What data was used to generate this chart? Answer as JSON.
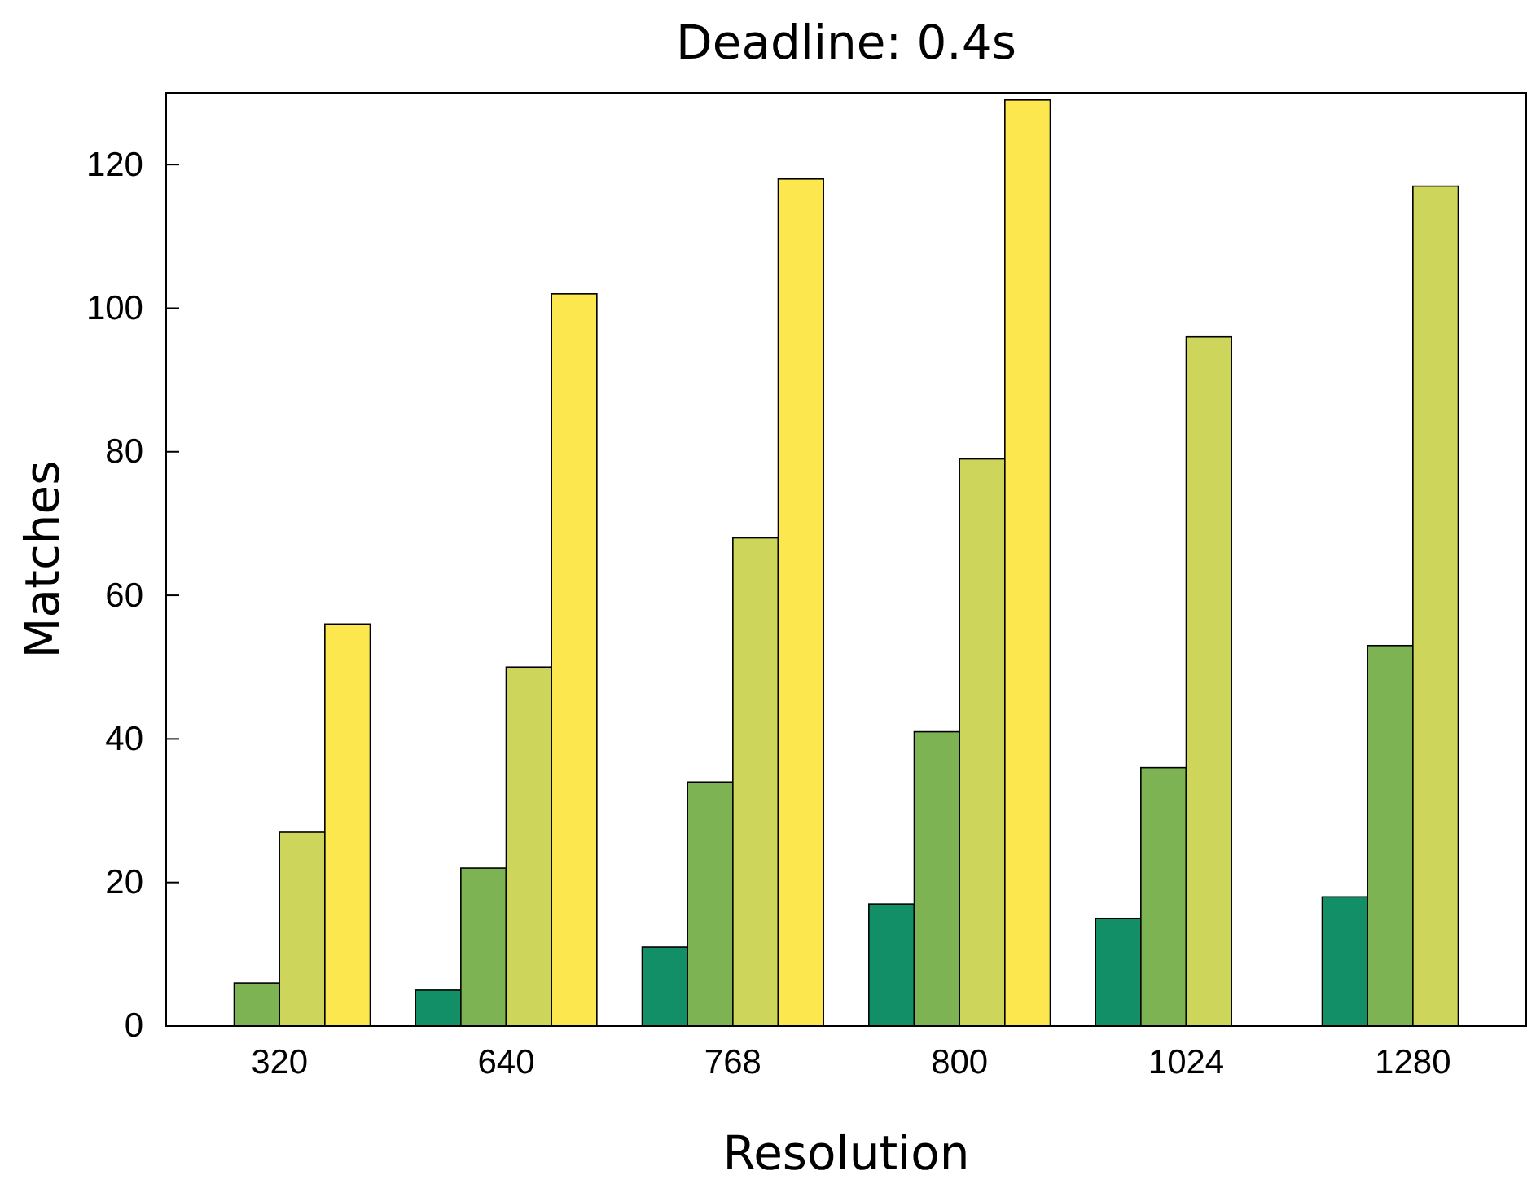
{
  "chart_data": {
    "type": "bar",
    "title": "Deadline: 0.4s",
    "xlabel": "Resolution",
    "ylabel": "Matches",
    "categories": [
      "320",
      "640",
      "768",
      "800",
      "1024",
      "1280"
    ],
    "series": [
      {
        "color": "#128f67",
        "values": [
          null,
          5,
          11,
          17,
          15,
          18
        ]
      },
      {
        "color": "#7db352",
        "values": [
          6,
          22,
          34,
          41,
          36,
          53
        ]
      },
      {
        "color": "#cdd65a",
        "values": [
          27,
          50,
          68,
          79,
          96,
          117
        ]
      },
      {
        "color": "#fde74f",
        "values": [
          56,
          102,
          118,
          129,
          null,
          null
        ]
      }
    ],
    "ylim": [
      0,
      130
    ],
    "yticks": [
      0,
      20,
      40,
      60,
      80,
      100,
      120
    ],
    "grid": false
  }
}
